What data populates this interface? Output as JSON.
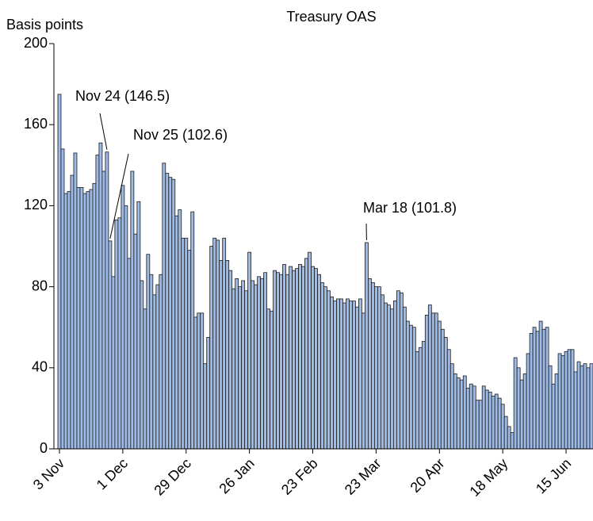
{
  "chart_data": {
    "type": "bar",
    "title": "Treasury OAS",
    "y_label": "Basis points",
    "categories": [
      "3 Nov",
      null,
      null,
      null,
      null,
      null,
      null,
      null,
      null,
      null,
      null,
      null,
      null,
      null,
      null,
      null,
      null,
      null,
      null,
      null,
      "1 Dec",
      null,
      null,
      null,
      null,
      null,
      null,
      null,
      null,
      null,
      null,
      null,
      null,
      null,
      null,
      null,
      null,
      null,
      null,
      null,
      "29 Dec",
      null,
      null,
      null,
      null,
      null,
      null,
      null,
      null,
      null,
      null,
      null,
      null,
      null,
      null,
      null,
      null,
      null,
      null,
      null,
      "26 Jan",
      null,
      null,
      null,
      null,
      null,
      null,
      null,
      null,
      null,
      null,
      null,
      null,
      null,
      null,
      null,
      null,
      null,
      null,
      null,
      "23 Feb",
      null,
      null,
      null,
      null,
      null,
      null,
      null,
      null,
      null,
      null,
      null,
      null,
      null,
      null,
      null,
      null,
      null,
      null,
      null,
      "23 Mar",
      null,
      null,
      null,
      null,
      null,
      null,
      null,
      null,
      null,
      null,
      null,
      null,
      null,
      null,
      null,
      null,
      null,
      null,
      null,
      "20 Apr",
      null,
      null,
      null,
      null,
      null,
      null,
      null,
      null,
      null,
      null,
      null,
      null,
      null,
      null,
      null,
      null,
      null,
      null,
      null,
      "18 May",
      null,
      null,
      null,
      null,
      null,
      null,
      null,
      null,
      null,
      null,
      null,
      null,
      null,
      null,
      null,
      null,
      null,
      null,
      null,
      "15 Jun",
      null,
      null,
      null,
      null,
      null,
      null,
      null,
      null
    ],
    "values": [
      175,
      148,
      126,
      127,
      135,
      146,
      129,
      129,
      126,
      127,
      128,
      131,
      145,
      151,
      137,
      146.5,
      102.6,
      85,
      113,
      114,
      130,
      120,
      94,
      137,
      106,
      122,
      83,
      69,
      96,
      86,
      76,
      81,
      86,
      141,
      136,
      134,
      133,
      115,
      118,
      104,
      104,
      98,
      117,
      65,
      67,
      67,
      42,
      55,
      100,
      104,
      103,
      93,
      104,
      93,
      88,
      79,
      84,
      80,
      83,
      78,
      97,
      83,
      81,
      85,
      84,
      87,
      69,
      68,
      88,
      87,
      86,
      91,
      86,
      90,
      88,
      89,
      91,
      90,
      94,
      97,
      90,
      89,
      86,
      82,
      80,
      78,
      75,
      73,
      74,
      74,
      72,
      74,
      73,
      73,
      70,
      74,
      67,
      101.8,
      84,
      82,
      80,
      80,
      76,
      72,
      71,
      69,
      73,
      78,
      77,
      70,
      63,
      61,
      60,
      48,
      50,
      53,
      66,
      71,
      67,
      67,
      63,
      59,
      55,
      49,
      42,
      37,
      35,
      34,
      36,
      30,
      32,
      31,
      24,
      24,
      31,
      29,
      28,
      26,
      27,
      25,
      22,
      16,
      11,
      8,
      45,
      40,
      34,
      37,
      47,
      57,
      60,
      58,
      63,
      59,
      60,
      41,
      32,
      37,
      47,
      46,
      48,
      49,
      49,
      38,
      43,
      41,
      42,
      40,
      42
    ],
    "color": "#9dbbe9",
    "ylim": [
      0,
      200
    ],
    "yticks": [
      0,
      40,
      80,
      120,
      160,
      200
    ],
    "annotations": [
      "Nov 24 (146.5)",
      "Nov 25 (102.6)",
      "Mar 18 (101.8)"
    ]
  }
}
